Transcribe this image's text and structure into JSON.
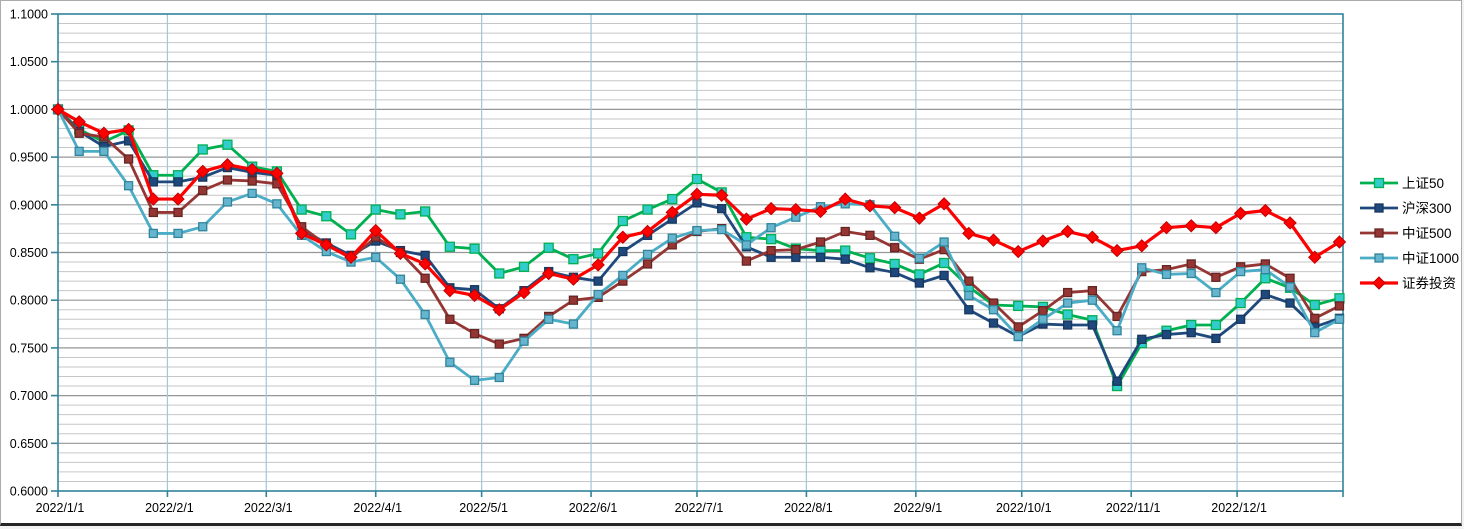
{
  "chart_data": {
    "type": "line",
    "title": "",
    "xlabel": "",
    "ylabel": "",
    "background": "#FFFFFF",
    "y_axis": {
      "min": 0.6,
      "max": 1.1,
      "major_step": 0.05,
      "minor_step": 0.01,
      "tick_labels": [
        "1.1000",
        "1.0500",
        "1.0000",
        "0.9500",
        "0.9000",
        "0.8500",
        "0.8000",
        "0.7500",
        "0.7000",
        "0.6500",
        "0.6000"
      ]
    },
    "x_axis": {
      "span_days": 364,
      "month_labels": [
        "2022/1/1",
        "2022/2/1",
        "2022/3/1",
        "2022/4/1",
        "2022/5/1",
        "2022/6/1",
        "2022/7/1",
        "2022/8/1",
        "2022/9/1",
        "2022/10/1",
        "2022/11/1",
        "2022/12/1"
      ],
      "month_day_offsets": [
        0,
        31,
        59,
        90,
        120,
        151,
        181,
        212,
        243,
        273,
        304,
        334
      ]
    },
    "dates": [
      "2022/1/1",
      "2022/1/7",
      "2022/1/14",
      "2022/1/21",
      "2022/1/28",
      "2022/2/4",
      "2022/2/11",
      "2022/2/18",
      "2022/2/25",
      "2022/3/4",
      "2022/3/11",
      "2022/3/18",
      "2022/3/25",
      "2022/4/1",
      "2022/4/8",
      "2022/4/15",
      "2022/4/22",
      "2022/4/29",
      "2022/5/6",
      "2022/5/13",
      "2022/5/20",
      "2022/5/27",
      "2022/6/3",
      "2022/6/10",
      "2022/6/17",
      "2022/6/24",
      "2022/7/1",
      "2022/7/8",
      "2022/7/15",
      "2022/7/22",
      "2022/7/29",
      "2022/8/5",
      "2022/8/12",
      "2022/8/19",
      "2022/8/26",
      "2022/9/2",
      "2022/9/9",
      "2022/9/16",
      "2022/9/23",
      "2022/9/30",
      "2022/10/7",
      "2022/10/14",
      "2022/10/21",
      "2022/10/28",
      "2022/11/4",
      "2022/11/11",
      "2022/11/18",
      "2022/11/25",
      "2022/12/2",
      "2022/12/9",
      "2022/12/16",
      "2022/12/23",
      "2022/12/30"
    ],
    "day_offsets": [
      0,
      6,
      13,
      20,
      27,
      34,
      41,
      48,
      55,
      62,
      69,
      76,
      83,
      90,
      97,
      104,
      111,
      118,
      125,
      132,
      139,
      146,
      153,
      160,
      167,
      174,
      181,
      188,
      195,
      202,
      209,
      216,
      223,
      230,
      237,
      244,
      251,
      258,
      265,
      272,
      279,
      286,
      293,
      300,
      307,
      314,
      321,
      328,
      335,
      342,
      349,
      356,
      363
    ],
    "series": [
      {
        "name": "上证50",
        "color": "#00B050",
        "marker": "square",
        "marker_fill": "#33CCCC",
        "marker_stroke": "#00B050",
        "values": [
          1.0,
          0.979,
          0.966,
          0.978,
          0.931,
          0.931,
          0.958,
          0.963,
          0.94,
          0.935,
          0.895,
          0.888,
          0.869,
          0.895,
          0.89,
          0.893,
          0.856,
          0.854,
          0.828,
          0.835,
          0.855,
          0.843,
          0.849,
          0.883,
          0.895,
          0.906,
          0.927,
          0.913,
          0.866,
          0.864,
          0.854,
          0.852,
          0.852,
          0.844,
          0.838,
          0.827,
          0.839,
          0.814,
          0.795,
          0.794,
          0.793,
          0.785,
          0.779,
          0.71,
          0.755,
          0.768,
          0.774,
          0.774,
          0.797,
          0.823,
          0.813,
          0.795,
          0.802
        ]
      },
      {
        "name": "沪深300",
        "color": "#1F497D",
        "marker": "square",
        "marker_fill": "#1F497D",
        "marker_stroke": "#17375E",
        "values": [
          1.0,
          0.977,
          0.961,
          0.967,
          0.924,
          0.924,
          0.929,
          0.939,
          0.934,
          0.931,
          0.874,
          0.86,
          0.847,
          0.862,
          0.852,
          0.847,
          0.813,
          0.811,
          0.791,
          0.81,
          0.83,
          0.824,
          0.82,
          0.851,
          0.868,
          0.885,
          0.902,
          0.896,
          0.856,
          0.845,
          0.845,
          0.845,
          0.843,
          0.834,
          0.829,
          0.818,
          0.826,
          0.79,
          0.776,
          0.762,
          0.775,
          0.774,
          0.774,
          0.715,
          0.759,
          0.764,
          0.766,
          0.76,
          0.78,
          0.806,
          0.797,
          0.772,
          0.781
        ]
      },
      {
        "name": "中证500",
        "color": "#963634",
        "marker": "square",
        "marker_fill": "#963634",
        "marker_stroke": "#632523",
        "values": [
          1.0,
          0.975,
          0.971,
          0.948,
          0.892,
          0.892,
          0.915,
          0.926,
          0.925,
          0.922,
          0.877,
          0.858,
          0.844,
          0.866,
          0.85,
          0.823,
          0.78,
          0.765,
          0.754,
          0.76,
          0.783,
          0.8,
          0.803,
          0.82,
          0.838,
          0.858,
          0.872,
          0.875,
          0.841,
          0.852,
          0.853,
          0.861,
          0.872,
          0.868,
          0.855,
          0.843,
          0.853,
          0.82,
          0.797,
          0.772,
          0.789,
          0.808,
          0.81,
          0.783,
          0.83,
          0.832,
          0.838,
          0.824,
          0.835,
          0.838,
          0.823,
          0.781,
          0.794
        ]
      },
      {
        "name": "中证1000",
        "color": "#4BACC6",
        "marker": "square",
        "marker_fill": "#65B5CF",
        "marker_stroke": "#31849B",
        "values": [
          1.0,
          0.956,
          0.956,
          0.92,
          0.87,
          0.87,
          0.877,
          0.903,
          0.912,
          0.901,
          0.868,
          0.851,
          0.84,
          0.845,
          0.822,
          0.785,
          0.735,
          0.716,
          0.719,
          0.757,
          0.78,
          0.775,
          0.806,
          0.826,
          0.848,
          0.865,
          0.873,
          0.874,
          0.858,
          0.876,
          0.887,
          0.898,
          0.901,
          0.9,
          0.867,
          0.844,
          0.861,
          0.805,
          0.79,
          0.762,
          0.78,
          0.797,
          0.8,
          0.768,
          0.834,
          0.827,
          0.828,
          0.808,
          0.83,
          0.832,
          0.814,
          0.766,
          0.78
        ]
      },
      {
        "name": "证券投资",
        "color": "#FF0000",
        "marker": "diamond",
        "marker_fill": "#FF0000",
        "marker_stroke": "#C00000",
        "values": [
          1.0,
          0.987,
          0.975,
          0.979,
          0.906,
          0.906,
          0.935,
          0.942,
          0.937,
          0.933,
          0.87,
          0.858,
          0.845,
          0.873,
          0.849,
          0.838,
          0.81,
          0.805,
          0.79,
          0.808,
          0.828,
          0.822,
          0.837,
          0.866,
          0.872,
          0.892,
          0.911,
          0.91,
          0.885,
          0.896,
          0.895,
          0.893,
          0.906,
          0.899,
          0.897,
          0.886,
          0.901,
          0.87,
          0.863,
          0.851,
          0.862,
          0.872,
          0.866,
          0.852,
          0.857,
          0.876,
          0.878,
          0.876,
          0.891,
          0.894,
          0.881,
          0.845,
          0.861
        ]
      }
    ],
    "legend_position": "right",
    "style": {
      "axis_color": "#31849B",
      "minor_grid_color": "#C6C6C6",
      "major_grid_color": "#969696",
      "month_grid_color": "#A3C6D8",
      "label_color": "#000000"
    }
  }
}
